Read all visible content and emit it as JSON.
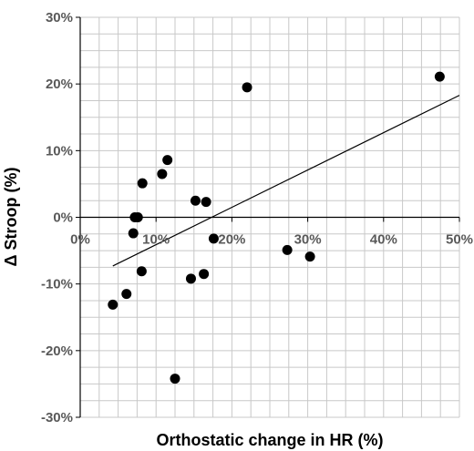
{
  "chart_data": {
    "type": "scatter",
    "title": "",
    "xlabel": "Orthostatic change in HR (%)",
    "ylabel": "Δ Stroop (%)",
    "xlim": [
      0,
      50
    ],
    "ylim": [
      -30,
      30
    ],
    "x_ticks": [
      0,
      10,
      20,
      30,
      40,
      50
    ],
    "y_ticks": [
      -30,
      -20,
      -10,
      0,
      10,
      20,
      30
    ],
    "x_tick_labels": [
      "0%",
      "10%",
      "20%",
      "30%",
      "40%",
      "50%"
    ],
    "y_tick_labels": [
      "-30%",
      "-20%",
      "-10%",
      "0%",
      "10%",
      "20%",
      "30%"
    ],
    "grid": true,
    "legend": "none",
    "series": [
      {
        "points": [
          {
            "x": 4.3,
            "y": -13.1
          },
          {
            "x": 6.1,
            "y": -11.5
          },
          {
            "x": 7.0,
            "y": -2.4
          },
          {
            "x": 7.2,
            "y": 0.0
          },
          {
            "x": 7.6,
            "y": 0.0
          },
          {
            "x": 8.2,
            "y": 5.1
          },
          {
            "x": 8.1,
            "y": -8.1
          },
          {
            "x": 10.8,
            "y": 6.5
          },
          {
            "x": 11.5,
            "y": 8.6
          },
          {
            "x": 12.5,
            "y": -24.2
          },
          {
            "x": 14.6,
            "y": -9.2
          },
          {
            "x": 15.2,
            "y": 2.5
          },
          {
            "x": 16.3,
            "y": -8.5
          },
          {
            "x": 16.6,
            "y": 2.3
          },
          {
            "x": 17.6,
            "y": -3.2
          },
          {
            "x": 22.0,
            "y": 19.5
          },
          {
            "x": 27.3,
            "y": -4.9
          },
          {
            "x": 30.3,
            "y": -5.9
          },
          {
            "x": 47.4,
            "y": 21.1
          }
        ]
      }
    ],
    "trendline": {
      "type": "linear",
      "x": [
        4.3,
        50.0
      ],
      "y": [
        -7.3,
        18.3
      ]
    },
    "colors": {
      "points": "#000000",
      "grid": "#c8c8c8",
      "axis": "#000000",
      "trend": "#000000",
      "tick_text": "#595959"
    }
  }
}
